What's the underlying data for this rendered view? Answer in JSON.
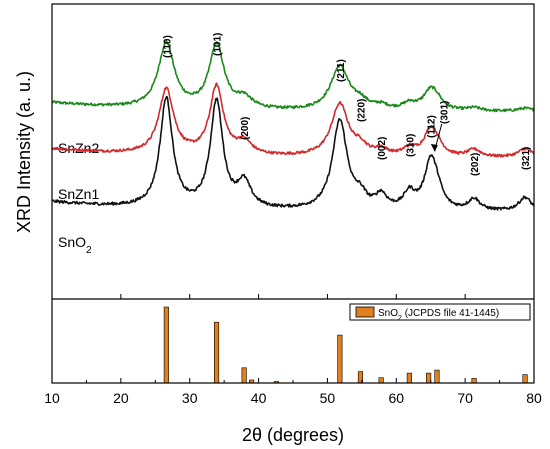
{
  "chart_data": {
    "type": "line",
    "xlabel": "2θ (degrees)",
    "ylabel": "XRD Intensity (a. u.)",
    "xlim": [
      10,
      80
    ],
    "x_ticks": [
      "10",
      "20",
      "30",
      "40",
      "50",
      "60",
      "70",
      "80"
    ],
    "grid": false,
    "series": [
      {
        "name": "SnZn2",
        "label_parts": [
          "SnZn2"
        ],
        "color": "#1a8a1a",
        "baseline": 0.16,
        "peaks": [
          {
            "x": 26.6,
            "h": 0.62,
            "w": 1.4
          },
          {
            "x": 33.9,
            "h": 0.61,
            "w": 1.3
          },
          {
            "x": 37.9,
            "h": 0.1,
            "w": 1.4
          },
          {
            "x": 51.8,
            "h": 0.42,
            "w": 1.6
          },
          {
            "x": 54.8,
            "h": 0.07,
            "w": 1.2
          },
          {
            "x": 57.8,
            "h": 0.04,
            "w": 1.2
          },
          {
            "x": 61.9,
            "h": 0.06,
            "w": 1.2
          },
          {
            "x": 65.0,
            "h": 0.19,
            "w": 1.3
          },
          {
            "x": 66.0,
            "h": 0.05,
            "w": 1.0
          },
          {
            "x": 71.3,
            "h": 0.03,
            "w": 1.2
          },
          {
            "x": 78.7,
            "h": 0.03,
            "w": 1.3
          }
        ]
      },
      {
        "name": "SnZn1",
        "label_parts": [
          "SnZn1"
        ],
        "color": "#d42a2a",
        "baseline": 0.16,
        "peaks": [
          {
            "x": 26.6,
            "h": 0.62,
            "w": 1.3
          },
          {
            "x": 33.9,
            "h": 0.65,
            "w": 1.2
          },
          {
            "x": 37.9,
            "h": 0.12,
            "w": 1.3
          },
          {
            "x": 51.8,
            "h": 0.5,
            "w": 1.5
          },
          {
            "x": 54.8,
            "h": 0.08,
            "w": 1.1
          },
          {
            "x": 57.8,
            "h": 0.06,
            "w": 1.1
          },
          {
            "x": 61.9,
            "h": 0.07,
            "w": 1.1
          },
          {
            "x": 65.0,
            "h": 0.25,
            "w": 1.2
          },
          {
            "x": 66.0,
            "h": 0.06,
            "w": 1.0
          },
          {
            "x": 71.3,
            "h": 0.07,
            "w": 1.1
          },
          {
            "x": 78.7,
            "h": 0.08,
            "w": 1.2
          }
        ]
      },
      {
        "name": "SnO2",
        "label_parts": [
          "SnO",
          "2"
        ],
        "color": "#111111",
        "baseline": 0.16,
        "peaks": [
          {
            "x": 26.6,
            "h": 0.95,
            "w": 1.1
          },
          {
            "x": 33.9,
            "h": 0.93,
            "w": 1.1
          },
          {
            "x": 37.9,
            "h": 0.22,
            "w": 1.2
          },
          {
            "x": 51.8,
            "h": 0.78,
            "w": 1.3
          },
          {
            "x": 54.8,
            "h": 0.1,
            "w": 1.0
          },
          {
            "x": 57.8,
            "h": 0.12,
            "w": 1.0
          },
          {
            "x": 61.9,
            "h": 0.14,
            "w": 1.0
          },
          {
            "x": 65.0,
            "h": 0.42,
            "w": 1.1
          },
          {
            "x": 66.0,
            "h": 0.1,
            "w": 0.9
          },
          {
            "x": 71.3,
            "h": 0.1,
            "w": 1.0
          },
          {
            "x": 78.7,
            "h": 0.12,
            "w": 1.1
          }
        ]
      }
    ],
    "peak_labels": [
      {
        "text": "(110)",
        "x": 26.6
      },
      {
        "text": "(101)",
        "x": 33.9
      },
      {
        "text": "(200)",
        "x": 37.9
      },
      {
        "text": "(211)",
        "x": 51.8
      },
      {
        "text": "(220)",
        "x": 54.8
      },
      {
        "text": "(002)",
        "x": 57.8
      },
      {
        "text": "(310)",
        "x": 61.9
      },
      {
        "text": "(112)",
        "x": 65.0
      },
      {
        "text": "(301)",
        "x": 66.0
      },
      {
        "text": "(202)",
        "x": 71.3
      },
      {
        "text": "(321)",
        "x": 78.7
      }
    ],
    "reference": {
      "legend_parts": [
        "SnO",
        "2",
        " (JCPDS file 41-1445)"
      ],
      "legend_position": "top-right",
      "bar_color": "#e2801e",
      "ylim": [
        0,
        100
      ],
      "lines": [
        {
          "x": 26.6,
          "i": 100
        },
        {
          "x": 33.9,
          "i": 80
        },
        {
          "x": 37.9,
          "i": 20
        },
        {
          "x": 39.0,
          "i": 4
        },
        {
          "x": 42.6,
          "i": 2
        },
        {
          "x": 51.8,
          "i": 63
        },
        {
          "x": 54.8,
          "i": 15
        },
        {
          "x": 57.8,
          "i": 7
        },
        {
          "x": 61.9,
          "i": 13
        },
        {
          "x": 64.7,
          "i": 13
        },
        {
          "x": 65.9,
          "i": 17
        },
        {
          "x": 71.3,
          "i": 6
        },
        {
          "x": 78.7,
          "i": 11
        }
      ]
    }
  }
}
